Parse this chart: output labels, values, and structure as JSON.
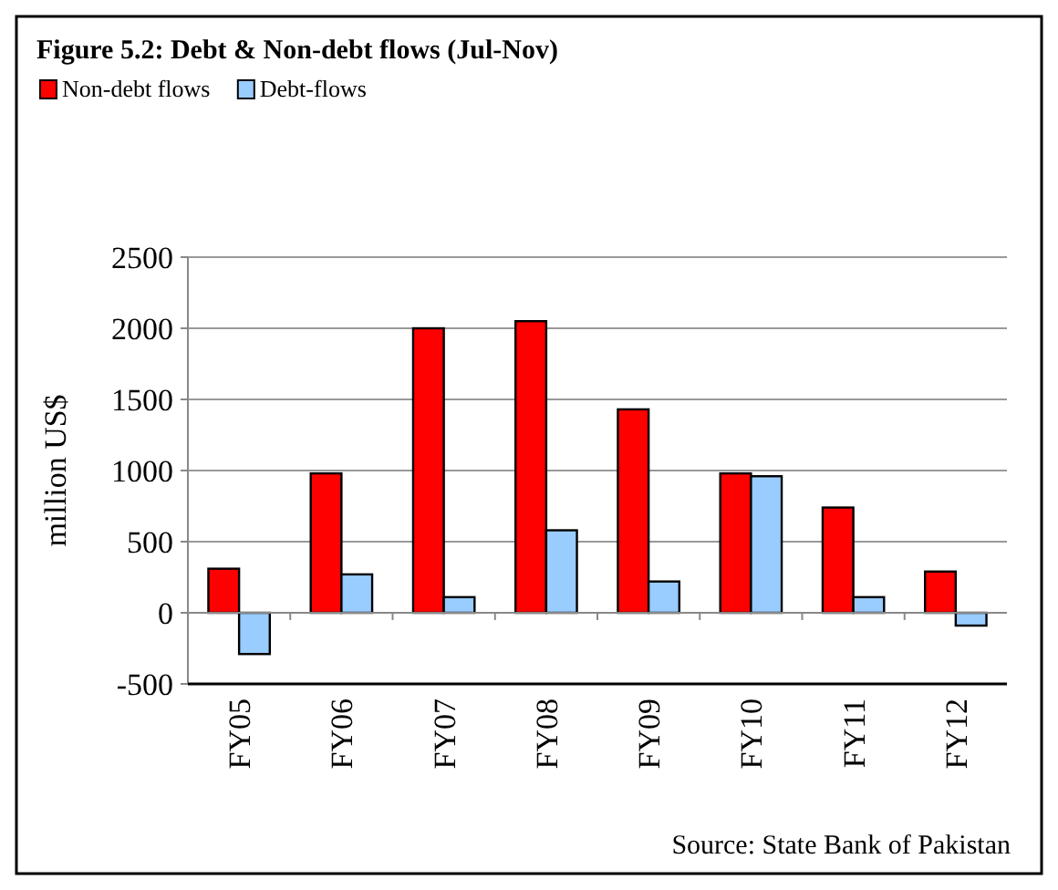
{
  "chart_data": {
    "type": "bar",
    "title": "Figure 5.2: Debt & Non-debt flows (Jul-Nov)",
    "ylabel": "million US$",
    "annotations": [
      "Source: State Bank of Pakistan"
    ],
    "categories": [
      "FY05",
      "FY06",
      "FY07",
      "FY08",
      "FY09",
      "FY10",
      "FY11",
      "FY12"
    ],
    "series": [
      {
        "name": "Non-debt flows",
        "color": "#ff0000",
        "values": [
          310,
          980,
          2000,
          2050,
          1430,
          980,
          740,
          290
        ]
      },
      {
        "name": "Debt-flows",
        "color": "#99ccff",
        "values": [
          -290,
          270,
          110,
          580,
          220,
          960,
          110,
          -90
        ]
      }
    ],
    "ylim": [
      -500,
      2500
    ],
    "yticks": [
      -500,
      0,
      500,
      1000,
      1500,
      2000,
      2500
    ],
    "grid": "y",
    "legend": "top left"
  }
}
